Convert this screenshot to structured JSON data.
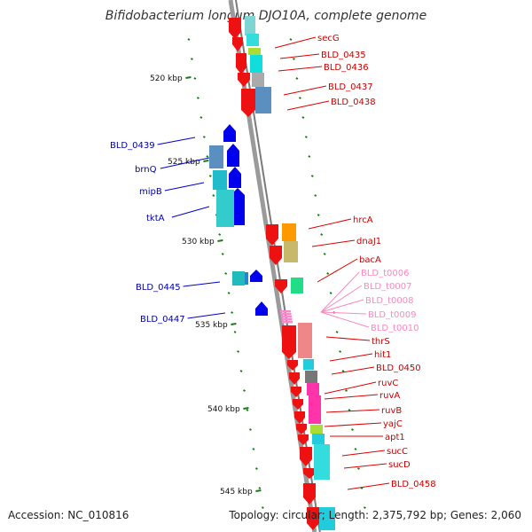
{
  "title": "Bifidobacterium longum DJO10A, complete genome",
  "footer": {
    "accession": "Accession: NC_010816",
    "summary": "Topology: circular; Length: 2,375,792 bp; Genes: 2,060"
  },
  "colors": {
    "backbone": "#8c8c8c",
    "forward_label": "#cc0000",
    "reverse_label": "#0000aa",
    "rna_label": "#ff88bb",
    "tick": "#1a7a1a"
  },
  "scale_labels": [
    "520 kbp",
    "525 kbp",
    "530 kbp",
    "535 kbp",
    "540 kbp",
    "545 kbp"
  ],
  "genes_right": [
    "secG",
    "BLD_0435",
    "BLD_0436",
    "BLD_0437",
    "BLD_0438",
    "hrcA",
    "dnaJ1",
    "bacA",
    "thrS",
    "hit1",
    "BLD_0450",
    "ruvC",
    "ruvA",
    "ruvB",
    "yajC",
    "apt1",
    "sucC",
    "sucD",
    "BLD_0458"
  ],
  "genes_rna": [
    "BLD_t0006",
    "BLD_t0007",
    "BLD_t0008",
    "BLD_t0009",
    "BLD_t0010"
  ],
  "genes_left": [
    "BLD_0439",
    "brnQ",
    "mipB",
    "tktA",
    "BLD_0445",
    "BLD_0447"
  ]
}
